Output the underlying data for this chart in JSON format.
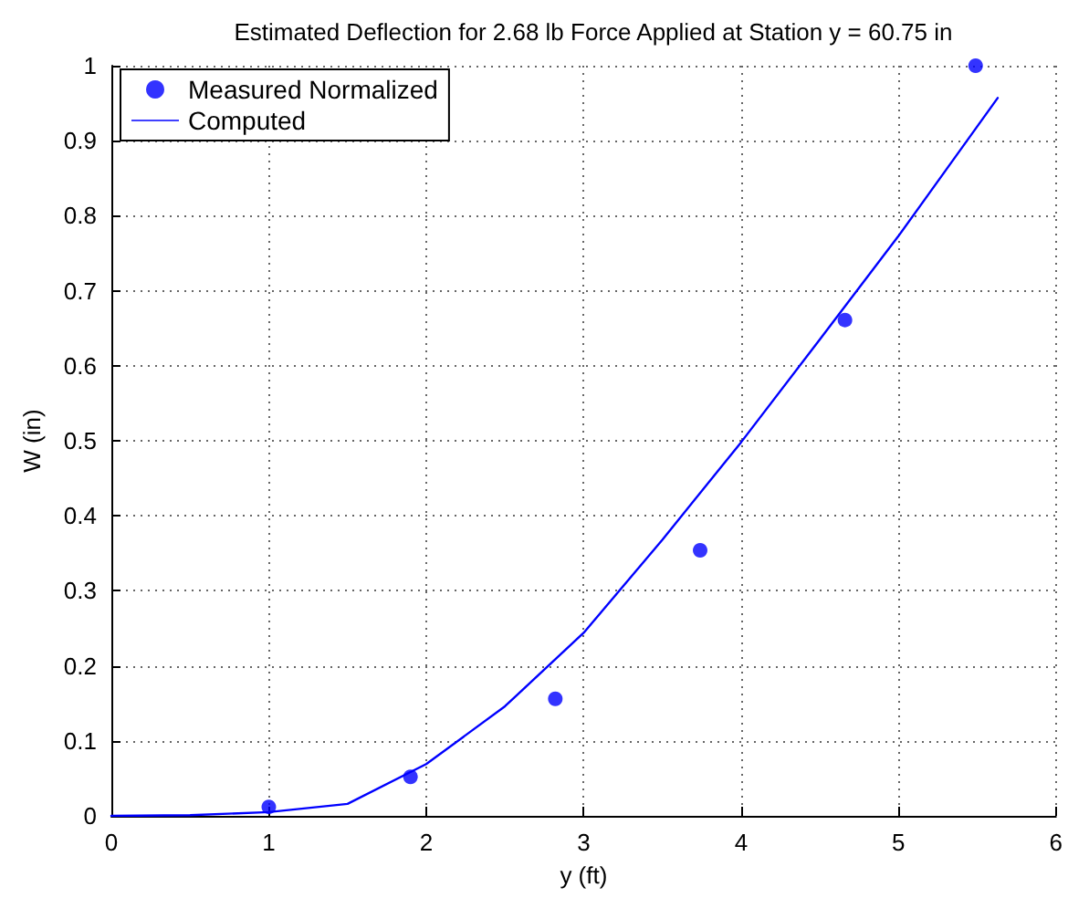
{
  "chart_data": {
    "type": "scatter",
    "title": "Estimated Deflection for 2.68 lb Force Applied at Station y = 60.75 in",
    "xlabel": "y (ft)",
    "ylabel": "W (in)",
    "xlim": [
      0,
      6
    ],
    "xticks": [
      0,
      1,
      2,
      3,
      4,
      5,
      6
    ],
    "ylim": [
      0,
      1
    ],
    "yticks": [
      0,
      0.1,
      0.2,
      0.3,
      0.4,
      0.5,
      0.6,
      0.7,
      0.8,
      0.9,
      1
    ],
    "grid": true,
    "legend": "top left",
    "series": [
      {
        "name": "Measured Normalized",
        "marker": "circle",
        "color": "#0000ff",
        "x": [
          1,
          1.9,
          2.82,
          3.74,
          4.66,
          5.49
        ],
        "values": [
          0.012,
          0.052,
          0.156,
          0.354,
          0.661,
          1.0
        ]
      },
      {
        "name": "Computed",
        "type": "line",
        "marker": "none",
        "line_style": "solid",
        "color": "#0000ff",
        "x": [
          0,
          0.5,
          1,
          1.5,
          2,
          2.5,
          3,
          3.5,
          4,
          4.5,
          5,
          5.63
        ],
        "values": [
          0,
          0.001,
          0.005,
          0.016,
          0.069,
          0.146,
          0.244,
          0.368,
          0.498,
          0.635,
          0.773,
          0.957
        ]
      }
    ]
  }
}
